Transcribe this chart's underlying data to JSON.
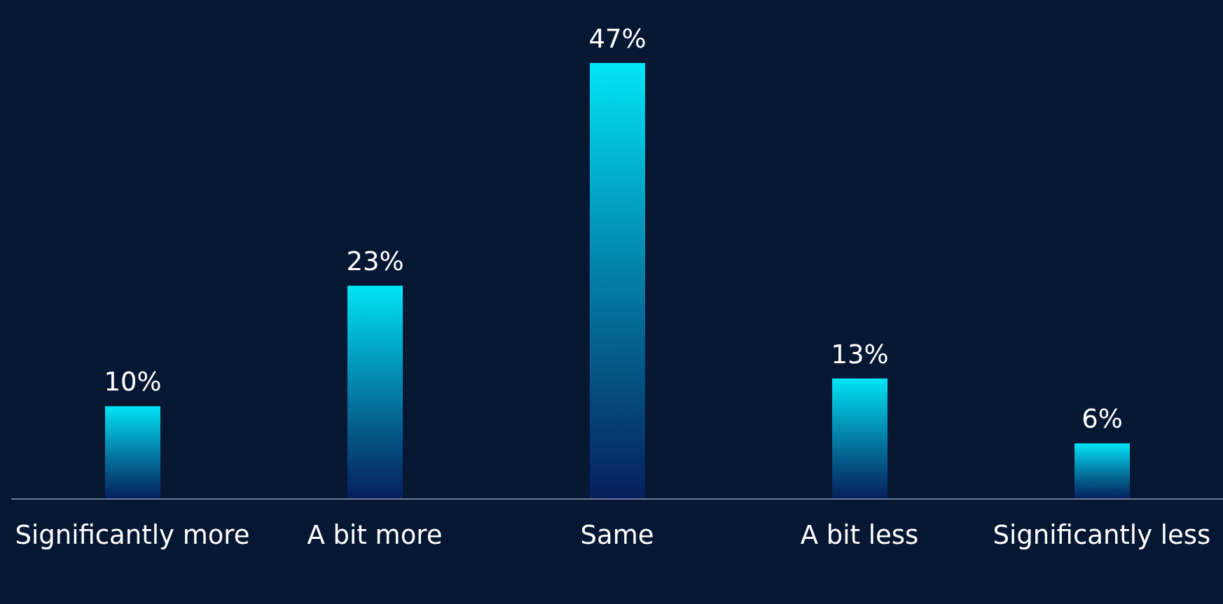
{
  "chart_data": {
    "type": "bar",
    "categories": [
      "Significantly more",
      "A bit more",
      "Same",
      "A bit less",
      "Significantly less"
    ],
    "values": [
      10,
      23,
      47,
      13,
      6
    ],
    "value_labels": [
      "10%",
      "23%",
      "47%",
      "13%",
      "6%"
    ],
    "color": "#00e5f7",
    "grid": false,
    "legend": false
  }
}
